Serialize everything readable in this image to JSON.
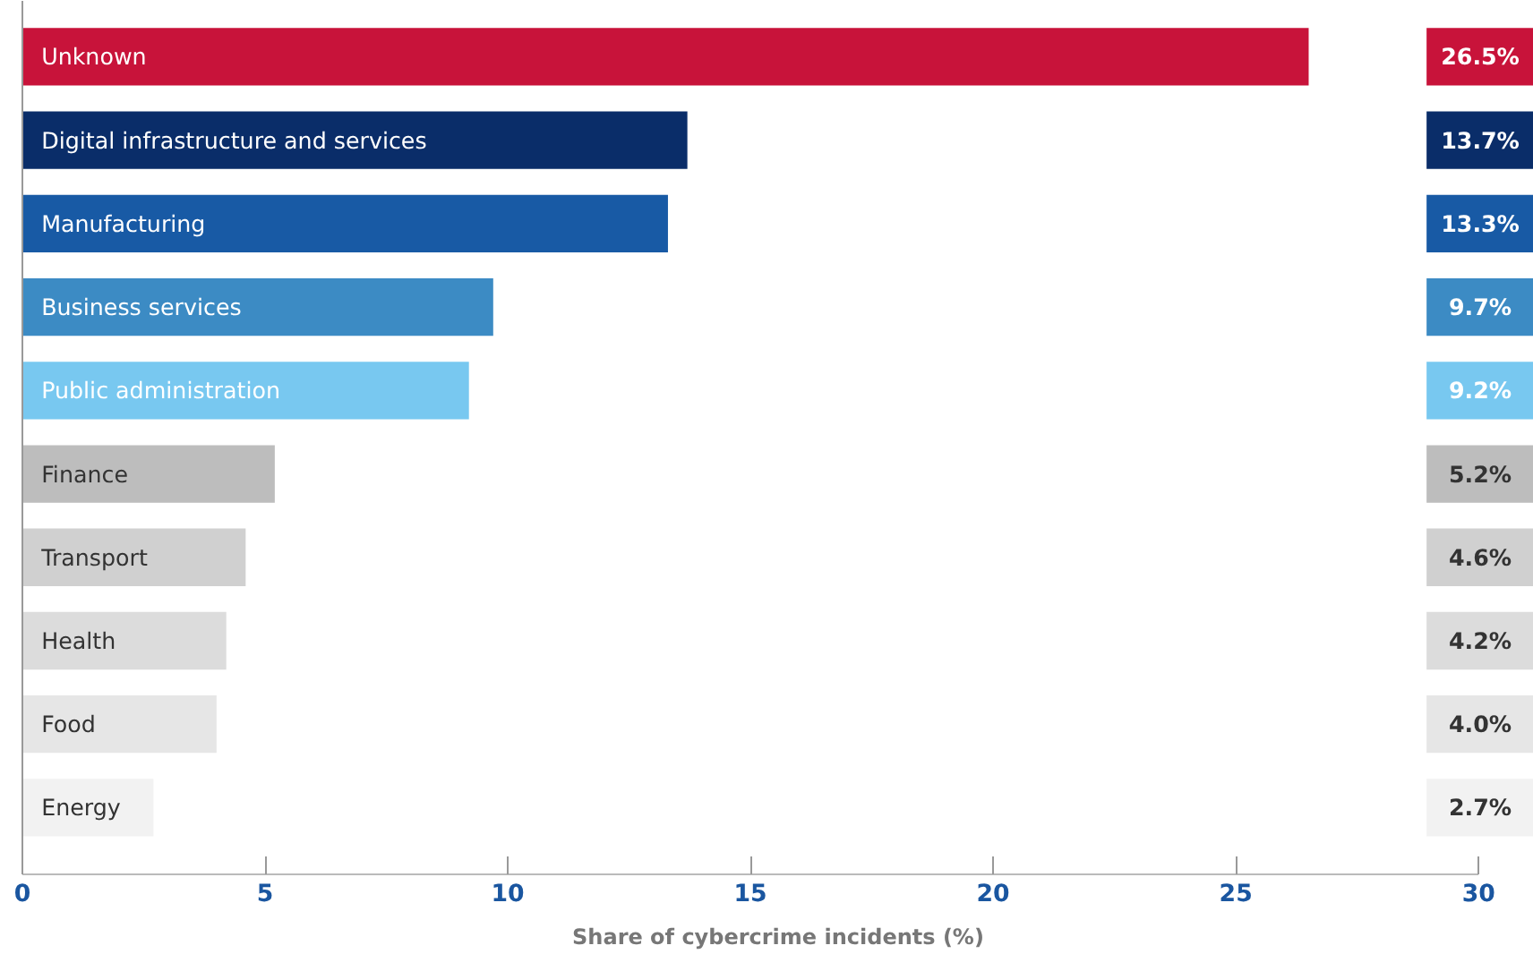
{
  "chart_data": {
    "type": "bar",
    "orientation": "horizontal",
    "xlabel": "Share of cybercrime incidents (%)",
    "categories": [
      "Unknown",
      "Digital infrastructure and services",
      "Manufacturing",
      "Business services",
      "Public administration",
      "Finance",
      "Transport",
      "Health",
      "Food",
      "Energy"
    ],
    "values": [
      26.5,
      13.7,
      13.3,
      9.7,
      9.2,
      5.2,
      4.6,
      4.2,
      4.0,
      2.7
    ],
    "colors": [
      "#c8133a",
      "#0a2d69",
      "#185aa5",
      "#3c8bc4",
      "#78c8f0",
      "#bdbdbd",
      "#d0d0d0",
      "#dcdcdc",
      "#e6e6e6",
      "#f2f2f2"
    ],
    "value_labels": [
      "26.5%",
      "13.7%",
      "13.3%",
      "9.7%",
      "9.2%",
      "5.2%",
      "4.6%",
      "4.2%",
      "4.0%",
      "2.7%"
    ],
    "xlim": [
      0,
      30
    ],
    "xticks": [
      0,
      5,
      10,
      15,
      20,
      25,
      30
    ],
    "grid": false
  }
}
